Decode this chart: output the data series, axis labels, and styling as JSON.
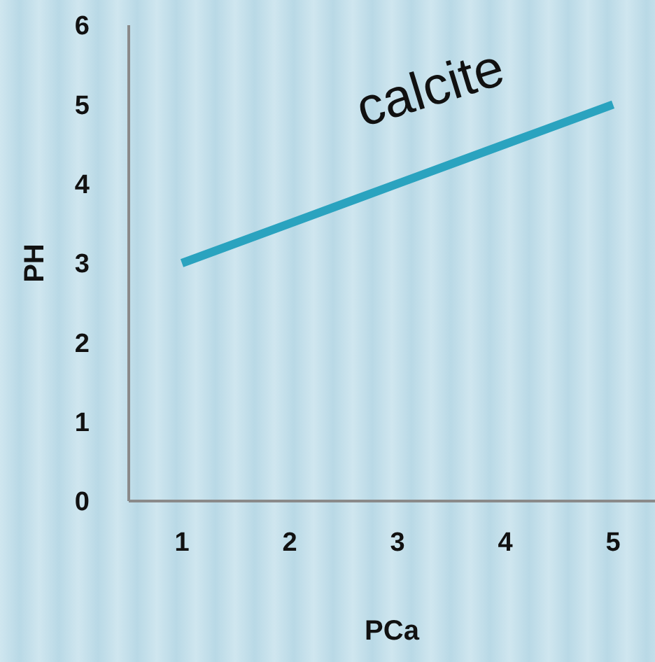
{
  "chart_data": {
    "type": "line",
    "xlabel": "PCa",
    "ylabel": "PH",
    "categories": [
      "1",
      "2",
      "3",
      "4",
      "5"
    ],
    "series": [
      {
        "name": "calcite",
        "color": "#2aa3bf",
        "values": [
          3,
          3.5,
          4,
          4.5,
          5
        ]
      }
    ],
    "ylim": [
      0,
      6
    ],
    "yticks": [
      0,
      1,
      2,
      3,
      4,
      5,
      6
    ],
    "grid": false,
    "legend": false,
    "marker": "none",
    "line_style": "solid"
  }
}
